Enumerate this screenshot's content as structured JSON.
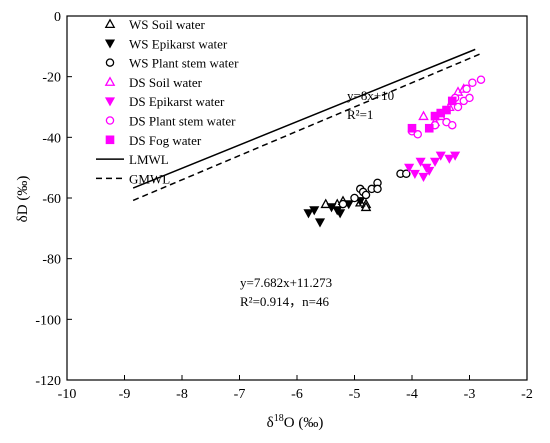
{
  "chart_data": {
    "type": "scatter",
    "xlabel": "δ18O (‰)",
    "ylabel": "δD (‰)",
    "xlim": [
      -10,
      -2
    ],
    "ylim": [
      -120,
      0
    ],
    "xticks": [
      -10,
      -9,
      -8,
      -7,
      -6,
      -5,
      -4,
      -3,
      -2
    ],
    "yticks": [
      0,
      -20,
      -40,
      -60,
      -80,
      -100,
      -120
    ],
    "xtick_labels": [
      "-10",
      "-9",
      "-8",
      "-7",
      "-6",
      "-5",
      "-4",
      "-3",
      "-2"
    ],
    "ytick_labels": [
      "0",
      "-20",
      "-40",
      "-60",
      "-80",
      "-100",
      "-120"
    ],
    "grid": false,
    "legend_position": "top-left",
    "series": [
      {
        "name": "WS Soil water",
        "marker": "triangle-up-open",
        "color": "#000000",
        "points": [
          [
            -5.5,
            -62
          ],
          [
            -5.3,
            -62
          ],
          [
            -5.2,
            -61
          ],
          [
            -4.8,
            -62
          ],
          [
            -4.8,
            -63
          ],
          [
            -4.9,
            -61.5
          ]
        ]
      },
      {
        "name": "WS Epikarst water",
        "marker": "triangle-down-filled",
        "color": "#000000",
        "points": [
          [
            -5.8,
            -65
          ],
          [
            -5.7,
            -64
          ],
          [
            -5.6,
            -68
          ],
          [
            -5.4,
            -63
          ],
          [
            -5.3,
            -64
          ],
          [
            -5.25,
            -65
          ],
          [
            -5.1,
            -62
          ],
          [
            -4.9,
            -61
          ]
        ]
      },
      {
        "name": "WS Plant stem water",
        "marker": "circle-open",
        "color": "#000000",
        "points": [
          [
            -5.2,
            -62
          ],
          [
            -5.0,
            -60
          ],
          [
            -4.9,
            -57
          ],
          [
            -4.85,
            -58
          ],
          [
            -4.8,
            -59
          ],
          [
            -4.7,
            -57
          ],
          [
            -4.6,
            -55
          ],
          [
            -4.6,
            -57
          ],
          [
            -4.2,
            -52
          ],
          [
            -4.1,
            -52
          ]
        ]
      },
      {
        "name": "DS Soil water",
        "marker": "triangle-up-open",
        "color": "#ff00ff",
        "points": [
          [
            -3.8,
            -33
          ],
          [
            -3.6,
            -35
          ],
          [
            -3.5,
            -33
          ],
          [
            -3.35,
            -30
          ],
          [
            -3.3,
            -28
          ],
          [
            -3.2,
            -25
          ],
          [
            -3.1,
            -24
          ]
        ]
      },
      {
        "name": "DS Epikarst water",
        "marker": "triangle-down-filled",
        "color": "#ff00ff",
        "points": [
          [
            -4.05,
            -50
          ],
          [
            -3.95,
            -52
          ],
          [
            -3.85,
            -48
          ],
          [
            -3.8,
            -53
          ],
          [
            -3.75,
            -50
          ],
          [
            -3.7,
            -51
          ],
          [
            -3.6,
            -48
          ],
          [
            -3.5,
            -46
          ],
          [
            -3.35,
            -47
          ],
          [
            -3.25,
            -46
          ]
        ]
      },
      {
        "name": "DS Plant stem water",
        "marker": "circle-open",
        "color": "#ff00ff",
        "points": [
          [
            -4.0,
            -38
          ],
          [
            -3.9,
            -39
          ],
          [
            -3.6,
            -36
          ],
          [
            -3.4,
            -35
          ],
          [
            -3.3,
            -36
          ],
          [
            -3.25,
            -27
          ],
          [
            -3.2,
            -30
          ],
          [
            -3.1,
            -28
          ],
          [
            -3.05,
            -24
          ],
          [
            -3.0,
            -27
          ],
          [
            -2.95,
            -22
          ],
          [
            -2.8,
            -21
          ]
        ]
      },
      {
        "name": "DS Fog water",
        "marker": "square-filled",
        "color": "#ff00ff",
        "points": [
          [
            -4.0,
            -37
          ],
          [
            -3.7,
            -37
          ],
          [
            -3.6,
            -33
          ],
          [
            -3.5,
            -32
          ],
          [
            -3.4,
            -31
          ],
          [
            -3.3,
            -28
          ]
        ]
      }
    ],
    "lines": [
      {
        "name": "LMWL",
        "style": "solid",
        "slope": 7.682,
        "intercept": 11.273,
        "x_range": [
          -8.85,
          -2.9
        ]
      },
      {
        "name": "GMWL",
        "style": "dashed",
        "slope": 8,
        "intercept": 10,
        "x_range": [
          -8.85,
          -2.8
        ]
      }
    ],
    "annotations": {
      "gmwl_eq": "y=8x+10",
      "gmwl_r2": "R²=1",
      "lmwl_eq": "y=7.682x+11.273",
      "lmwl_r2": "R²=0.914，n=46"
    }
  }
}
